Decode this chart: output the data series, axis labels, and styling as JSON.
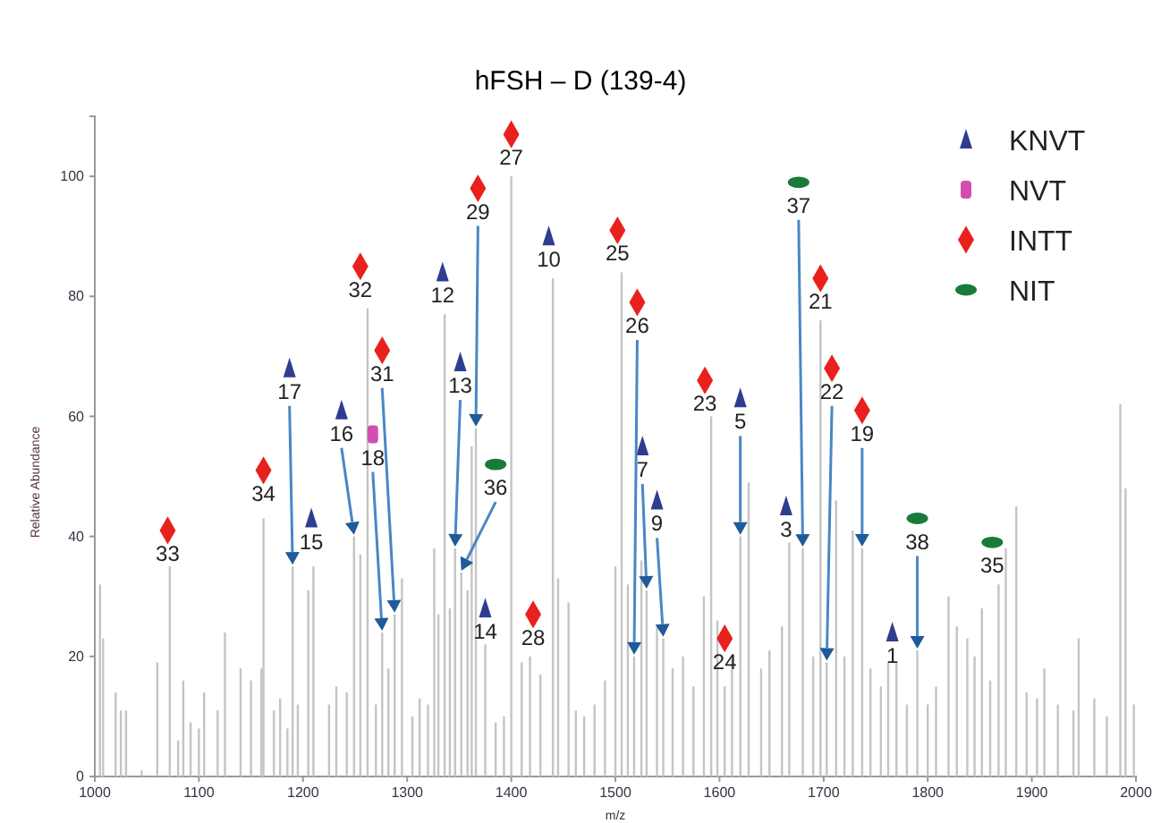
{
  "chart_data": {
    "type": "bar",
    "title": "hFSH – D (139-4)",
    "xlabel": "m/z",
    "ylabel": "Relative Abundance",
    "xlim": [
      1000,
      2000
    ],
    "xticks": [
      1000,
      1100,
      1200,
      1300,
      1400,
      1500,
      1600,
      1700,
      1800,
      1900,
      2000
    ],
    "ylim": [
      0,
      110
    ],
    "yticks": [
      0,
      20,
      40,
      60,
      80,
      100
    ],
    "legend": "top right",
    "grid": false,
    "series": [
      {
        "color": "#c4c4c4",
        "x": [
          1005,
          1008,
          1020,
          1025,
          1030,
          1045,
          1060,
          1072,
          1080,
          1085,
          1092,
          1100,
          1105,
          1118,
          1125,
          1140,
          1150,
          1160,
          1162,
          1172,
          1178,
          1185,
          1190,
          1195,
          1205,
          1210,
          1225,
          1232,
          1242,
          1249,
          1255,
          1262,
          1270,
          1276,
          1282,
          1288,
          1295,
          1305,
          1312,
          1320,
          1326,
          1330,
          1336,
          1341,
          1346,
          1352,
          1358,
          1362,
          1366,
          1375,
          1385,
          1393,
          1400,
          1410,
          1418,
          1428,
          1440,
          1445,
          1455,
          1462,
          1470,
          1480,
          1490,
          1500,
          1506,
          1512,
          1518,
          1525,
          1530,
          1540,
          1546,
          1555,
          1565,
          1575,
          1585,
          1592,
          1598,
          1605,
          1612,
          1620,
          1628,
          1640,
          1648,
          1660,
          1667,
          1680,
          1690,
          1697,
          1703,
          1712,
          1720,
          1728,
          1737,
          1745,
          1755,
          1762,
          1770,
          1780,
          1790,
          1800,
          1808,
          1820,
          1828,
          1838,
          1845,
          1852,
          1860,
          1868,
          1875,
          1885,
          1895,
          1905,
          1912,
          1925,
          1940,
          1945,
          1960,
          1972,
          1985,
          1990,
          1998
        ],
        "values": [
          32,
          23,
          14,
          11,
          11,
          1,
          19,
          35,
          6,
          16,
          9,
          8,
          14,
          11,
          24,
          18,
          16,
          18,
          43,
          11,
          13,
          8,
          35,
          12,
          31,
          35,
          12,
          15,
          14,
          40,
          37,
          78,
          12,
          24,
          18,
          27,
          33,
          10,
          13,
          12,
          38,
          27,
          77,
          28,
          38,
          34,
          31,
          55,
          58,
          22,
          9,
          10,
          100,
          19,
          20,
          17,
          83,
          33,
          29,
          11,
          10,
          12,
          16,
          35,
          84,
          32,
          20,
          36,
          31,
          25,
          23,
          18,
          20,
          15,
          30,
          60,
          26,
          15,
          20,
          40,
          49,
          18,
          21,
          25,
          39,
          38,
          20,
          76,
          19,
          46,
          20,
          41,
          38,
          18,
          15,
          19,
          19,
          12,
          21,
          12,
          15,
          30,
          25,
          23,
          20,
          28,
          16,
          32,
          38,
          45,
          14,
          13,
          18,
          12,
          11,
          23,
          13,
          10,
          62,
          48,
          12
        ]
      },
      {
        "type": "scatter",
        "name": "KNVT",
        "color": "#2e3d8f",
        "marker": "triangle",
        "x": [
          1187,
          1237,
          1208,
          1334,
          1351,
          1375,
          1436,
          1526,
          1540,
          1620,
          1664,
          1766
        ],
        "values": [
          68,
          61,
          43,
          84,
          69,
          28,
          90,
          55,
          46,
          63,
          45,
          24
        ]
      },
      {
        "type": "scatter",
        "name": "NVT",
        "color": "#d24fb0",
        "marker": "square",
        "x": [
          1267
        ],
        "values": [
          57
        ]
      },
      {
        "type": "scatter",
        "name": "INTT",
        "color": "#e8211c",
        "marker": "diamond",
        "x": [
          1070,
          1162,
          1255,
          1276,
          1368,
          1400,
          1421,
          1502,
          1521,
          1586,
          1605,
          1697,
          1708,
          1737
        ],
        "values": [
          41,
          51,
          85,
          71,
          98,
          107,
          27,
          91,
          79,
          66,
          23,
          83,
          68,
          61
        ]
      },
      {
        "type": "scatter",
        "name": "NIT",
        "color": "#1a7a3a",
        "marker": "circle",
        "x": [
          1385,
          1676,
          1790,
          1862
        ],
        "values": [
          52,
          99,
          43,
          39
        ]
      }
    ],
    "annotations": [
      {
        "text": "17",
        "x": 1190,
        "y": 35
      },
      {
        "text": "16",
        "x": 1249,
        "y": 40
      },
      {
        "text": "15",
        "x": 1210,
        "y": 35
      },
      {
        "text": "12",
        "x": 1336,
        "y": 77
      },
      {
        "text": "13",
        "x": 1346,
        "y": 38
      },
      {
        "text": "14",
        "x": 1375,
        "y": 22
      },
      {
        "text": "10",
        "x": 1440,
        "y": 83
      },
      {
        "text": "7",
        "x": 1530,
        "y": 31
      },
      {
        "text": "9",
        "x": 1546,
        "y": 23
      },
      {
        "text": "5",
        "x": 1620,
        "y": 40
      },
      {
        "text": "3",
        "x": 1667,
        "y": 39
      },
      {
        "text": "1",
        "x": 1770,
        "y": 19
      },
      {
        "text": "18",
        "x": 1276,
        "y": 24
      },
      {
        "text": "33",
        "x": 1072,
        "y": 35
      },
      {
        "text": "34",
        "x": 1162,
        "y": 43
      },
      {
        "text": "32",
        "x": 1262,
        "y": 78
      },
      {
        "text": "31",
        "x": 1288,
        "y": 27
      },
      {
        "text": "29",
        "x": 1366,
        "y": 58
      },
      {
        "text": "27",
        "x": 1400,
        "y": 100
      },
      {
        "text": "28",
        "x": 1418,
        "y": 20
      },
      {
        "text": "25",
        "x": 1506,
        "y": 84
      },
      {
        "text": "26",
        "x": 1518,
        "y": 20
      },
      {
        "text": "23",
        "x": 1592,
        "y": 60
      },
      {
        "text": "24",
        "x": 1605,
        "y": 15
      },
      {
        "text": "21",
        "x": 1697,
        "y": 76
      },
      {
        "text": "22",
        "x": 1703,
        "y": 19
      },
      {
        "text": "19",
        "x": 1737,
        "y": 38
      },
      {
        "text": "36",
        "x": 1352,
        "y": 34
      },
      {
        "text": "37",
        "x": 1680,
        "y": 38
      },
      {
        "text": "38",
        "x": 1790,
        "y": 21
      },
      {
        "text": "35",
        "x": 1868,
        "y": 32
      }
    ]
  }
}
